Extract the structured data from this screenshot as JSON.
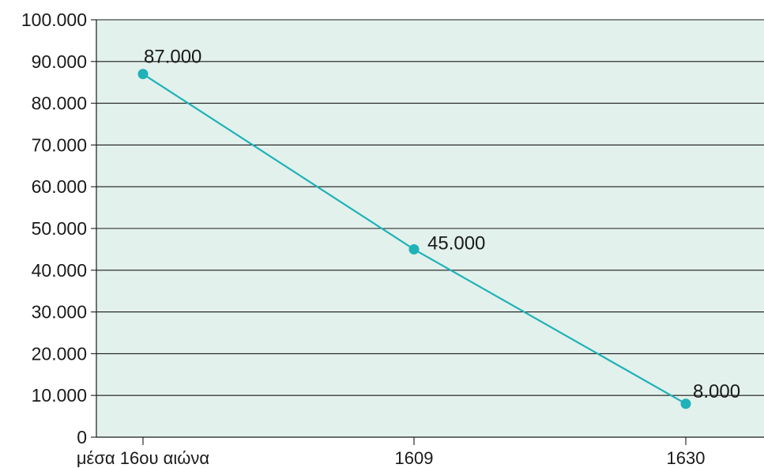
{
  "chart_data": {
    "type": "line",
    "categories": [
      "μέσα 16ου αιώνα",
      "1609",
      "1630"
    ],
    "series": [
      {
        "values": [
          87000,
          45000,
          8000
        ]
      }
    ],
    "data_labels": [
      "87.000",
      "45.000",
      "8.000"
    ],
    "ylim": [
      0,
      100000
    ],
    "yticks": [
      0,
      10000,
      20000,
      30000,
      40000,
      50000,
      60000,
      70000,
      80000,
      90000,
      100000
    ],
    "ytick_labels": [
      "0",
      "10.000",
      "20.000",
      "30.000",
      "40.000",
      "50.000",
      "60.000",
      "70.000",
      "80.000",
      "90.000",
      "100.000"
    ],
    "title": "",
    "xlabel": "",
    "ylabel": "",
    "grid": "horizontal",
    "legend": "none",
    "colors": {
      "plot_background": "#e2f1ec",
      "line": "#1fb2b8",
      "marker": "#1fb2b8",
      "gridline": "#1a1a1a",
      "axis": "#1a1a1a"
    }
  }
}
